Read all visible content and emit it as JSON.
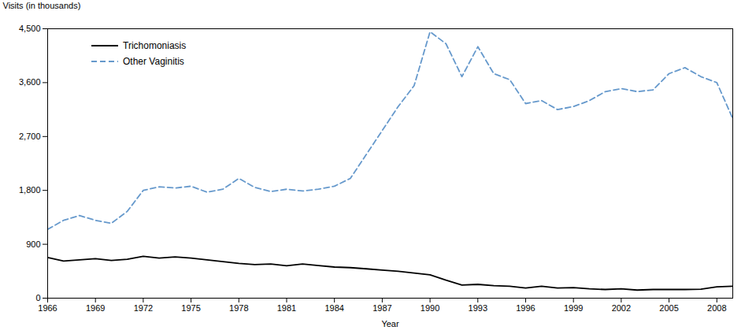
{
  "chart_data": {
    "type": "line",
    "x": [
      1966,
      1967,
      1968,
      1969,
      1970,
      1971,
      1972,
      1973,
      1974,
      1975,
      1976,
      1977,
      1978,
      1979,
      1980,
      1981,
      1982,
      1983,
      1984,
      1985,
      1986,
      1987,
      1988,
      1989,
      1990,
      1991,
      1992,
      1993,
      1994,
      1995,
      1996,
      1997,
      1998,
      1999,
      2000,
      2001,
      2002,
      2003,
      2004,
      2005,
      2006,
      2007,
      2008,
      2009
    ],
    "series": [
      {
        "name": "Trichomoniasis",
        "color": "#000000",
        "line_style": "solid",
        "values": [
          680,
          620,
          640,
          660,
          630,
          650,
          700,
          670,
          690,
          670,
          640,
          610,
          580,
          560,
          570,
          540,
          570,
          545,
          520,
          510,
          490,
          470,
          450,
          420,
          390,
          300,
          220,
          230,
          210,
          200,
          170,
          200,
          170,
          175,
          155,
          145,
          155,
          135,
          145,
          145,
          145,
          150,
          190,
          200
        ]
      },
      {
        "name": "Other Vaginitis",
        "color": "#6699cc",
        "line_style": "dashed",
        "values": [
          1150,
          1300,
          1380,
          1300,
          1250,
          1450,
          1800,
          1860,
          1840,
          1870,
          1770,
          1820,
          2000,
          1850,
          1780,
          1820,
          1790,
          1820,
          1870,
          2000,
          2400,
          2800,
          3200,
          3550,
          4450,
          4250,
          3700,
          4200,
          3750,
          3650,
          3250,
          3300,
          3150,
          3200,
          3300,
          3450,
          3500,
          3450,
          3480,
          3750,
          3850,
          3700,
          3600,
          3000
        ]
      }
    ],
    "xlabel": "Year",
    "ylabel": "Visits (in thousands)",
    "xlim": [
      1966,
      2009
    ],
    "xticks": [
      1966,
      1969,
      1972,
      1975,
      1978,
      1981,
      1984,
      1987,
      1990,
      1993,
      1996,
      1999,
      2002,
      2005,
      2008
    ],
    "ylim": [
      0,
      4500
    ],
    "yticks": [
      0,
      900,
      {
        "value": 1800,
        "label": "1,800"
      },
      {
        "value": 2700,
        "label": "2,700"
      },
      {
        "value": 3600,
        "label": "3,600"
      },
      {
        "value": 4500,
        "label": "4,500"
      }
    ],
    "grid": false,
    "legend": "upper left"
  }
}
